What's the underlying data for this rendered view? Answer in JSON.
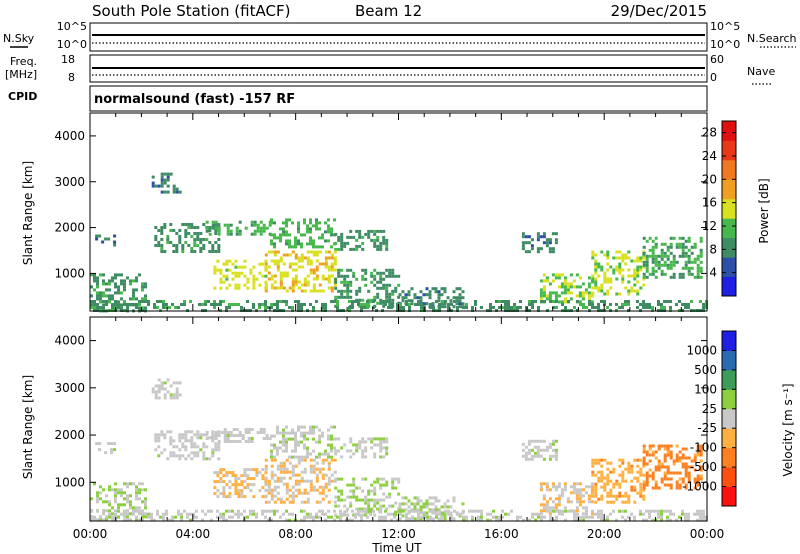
{
  "header": {
    "station": "South Pole Station (fitACF)",
    "beam": "Beam 12",
    "date": "29/Dec/2015"
  },
  "status": {
    "nsky_label": "N.Sky",
    "nsky_ticks": [
      "10^5",
      "10^0"
    ],
    "freq_label": "Freq.",
    "freq_unit": "[MHz]",
    "freq_ticks": [
      "18",
      "8"
    ],
    "cpid_label": "CPID",
    "nsearch_label": "N.Search",
    "nsearch_ticks": [
      "10^5",
      "10^0"
    ],
    "nave_label": "Nave",
    "nave_ticks": [
      "60",
      "0"
    ],
    "cpid_text": "normalsound (fast) -157 RF"
  },
  "colors": {
    "power": [
      "#1f1fe6",
      "#2d4fa8",
      "#3f8c64",
      "#46b84c",
      "#d8e020",
      "#f0a020",
      "#f07820",
      "#e83818",
      "#e01010"
    ],
    "velocity": [
      "#ff1010",
      "#ff5010",
      "#ff8020",
      "#ffb040",
      "#c8c8c8",
      "#8cd040",
      "#3c9c58",
      "#2a6ab0",
      "#1f1fe6"
    ]
  },
  "chart_data": [
    {
      "type": "heatmap",
      "name": "power",
      "ylabel": "Slant Range [km]",
      "yticks": [
        "1000",
        "2000",
        "3000",
        "4000"
      ],
      "ylim": [
        180,
        4500
      ],
      "xlim": [
        0,
        24
      ],
      "colorbar": {
        "label": "Power [dB]",
        "ticks": [
          "4",
          "8",
          "12",
          "16",
          "20",
          "24",
          "28"
        ],
        "range": [
          0,
          30
        ]
      },
      "patches": [
        {
          "t0": 0.2,
          "t1": 1.0,
          "r0": 1600,
          "r1": 1850,
          "v": 7
        },
        {
          "t0": 0.0,
          "t1": 2.2,
          "r0": 200,
          "r1": 1000,
          "v": 9
        },
        {
          "t0": 2.4,
          "t1": 3.5,
          "r0": 2800,
          "r1": 3200,
          "v": 8
        },
        {
          "t0": 2.5,
          "t1": 5.0,
          "r0": 1500,
          "r1": 2100,
          "v": 9
        },
        {
          "t0": 4.5,
          "t1": 7.0,
          "r0": 1850,
          "r1": 2150,
          "v": 11
        },
        {
          "t0": 7.0,
          "t1": 9.5,
          "r0": 1550,
          "r1": 2200,
          "v": 11
        },
        {
          "t0": 9.5,
          "t1": 11.5,
          "r0": 1550,
          "r1": 1950,
          "v": 9
        },
        {
          "t0": 4.8,
          "t1": 6.8,
          "r0": 700,
          "r1": 1300,
          "v": 15
        },
        {
          "t0": 6.8,
          "t1": 9.5,
          "r0": 600,
          "r1": 1500,
          "v": 16
        },
        {
          "t0": 9.5,
          "t1": 12.0,
          "r0": 300,
          "r1": 1100,
          "v": 9
        },
        {
          "t0": 12.0,
          "t1": 14.5,
          "r0": 250,
          "r1": 700,
          "v": 8
        },
        {
          "t0": 16.8,
          "t1": 18.2,
          "r0": 1500,
          "r1": 1900,
          "v": 8
        },
        {
          "t0": 17.5,
          "t1": 19.5,
          "r0": 350,
          "r1": 1000,
          "v": 13
        },
        {
          "t0": 19.5,
          "t1": 21.5,
          "r0": 550,
          "r1": 1500,
          "v": 14
        },
        {
          "t0": 21.5,
          "t1": 23.8,
          "r0": 900,
          "r1": 1800,
          "v": 10
        },
        {
          "t0": 0.0,
          "t1": 24.0,
          "r0": 200,
          "r1": 420,
          "v": 9
        }
      ]
    },
    {
      "type": "heatmap",
      "name": "velocity",
      "ylabel": "Slant Range [km]",
      "yticks": [
        "1000",
        "2000",
        "3000",
        "4000"
      ],
      "ylim": [
        180,
        4500
      ],
      "xlim": [
        0,
        24
      ],
      "xticks": [
        "00:00",
        "04:00",
        "08:00",
        "12:00",
        "16:00",
        "20:00",
        "00:00"
      ],
      "xlabel": "Time UT",
      "colorbar": {
        "label": "Velocity [m s⁻¹]",
        "ticks": [
          "-1000",
          "-500",
          "-100",
          "-25",
          "25",
          "100",
          "500",
          "1000"
        ],
        "range": [
          -1200,
          1200
        ]
      },
      "patches": [
        {
          "t0": 0.2,
          "t1": 1.0,
          "r0": 1600,
          "r1": 1850,
          "v": 20
        },
        {
          "t0": 0.0,
          "t1": 2.2,
          "r0": 200,
          "r1": 1000,
          "v": 120
        },
        {
          "t0": 2.4,
          "t1": 3.5,
          "r0": 2800,
          "r1": 3200,
          "v": 10
        },
        {
          "t0": 2.5,
          "t1": 5.0,
          "r0": 1500,
          "r1": 2100,
          "v": 15
        },
        {
          "t0": 4.5,
          "t1": 7.0,
          "r0": 1850,
          "r1": 2150,
          "v": 20
        },
        {
          "t0": 7.0,
          "t1": 9.5,
          "r0": 1550,
          "r1": 2200,
          "v": 80
        },
        {
          "t0": 9.5,
          "t1": 11.5,
          "r0": 1550,
          "r1": 1950,
          "v": 60
        },
        {
          "t0": 4.8,
          "t1": 6.8,
          "r0": 700,
          "r1": 1300,
          "v": -150
        },
        {
          "t0": 6.8,
          "t1": 9.5,
          "r0": 600,
          "r1": 1500,
          "v": -140
        },
        {
          "t0": 9.5,
          "t1": 12.0,
          "r0": 300,
          "r1": 1100,
          "v": 150
        },
        {
          "t0": 12.0,
          "t1": 14.5,
          "r0": 250,
          "r1": 700,
          "v": 120
        },
        {
          "t0": 16.8,
          "t1": 18.2,
          "r0": 1500,
          "r1": 1900,
          "v": 20
        },
        {
          "t0": 17.5,
          "t1": 19.5,
          "r0": 350,
          "r1": 1000,
          "v": -120
        },
        {
          "t0": 19.5,
          "t1": 21.5,
          "r0": 550,
          "r1": 1500,
          "v": -300
        },
        {
          "t0": 21.5,
          "t1": 23.8,
          "r0": 900,
          "r1": 1800,
          "v": -500
        },
        {
          "t0": 0.0,
          "t1": 24.0,
          "r0": 200,
          "r1": 420,
          "v": 30
        }
      ]
    }
  ]
}
